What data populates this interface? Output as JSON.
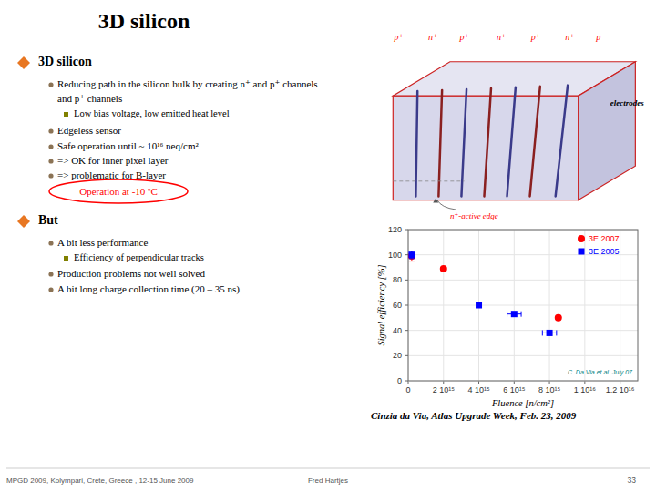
{
  "chart_data": {
    "type": "scatter",
    "title": "3D silicon",
    "xlabel": "Fluence [n/cm²]",
    "ylabel": "Signal efficiency [%]",
    "xlim": [
      0,
      1.3e+16
    ],
    "ylim": [
      0,
      120
    ],
    "xticks": [
      0,
      {
        "value": 2000000000000000.0,
        "label": "2 10¹⁵"
      },
      {
        "value": 4000000000000000.0,
        "label": "4 10¹⁵"
      },
      {
        "value": 6000000000000000.0,
        "label": "6 10¹⁵"
      },
      {
        "value": 8000000000000000.0,
        "label": "8 10¹⁵"
      },
      {
        "value": 1e+16,
        "label": "1 10¹⁶"
      },
      {
        "value": 1.2e+16,
        "label": "1.2 10¹⁶"
      }
    ],
    "yticks": [
      0,
      20,
      40,
      60,
      80,
      100,
      120
    ],
    "grid": true,
    "legend": "upper right",
    "series": [
      {
        "name": "3E 2007",
        "color": "red",
        "marker": "circle",
        "x": [
          200000000000000.0,
          2000000000000000.0,
          8500000000000000.0
        ],
        "values": [
          99,
          89,
          50
        ],
        "y_errors": [
          4,
          null,
          null
        ]
      },
      {
        "name": "3E 2005",
        "color": "blue",
        "marker": "square",
        "x": [
          200000000000000.0,
          4000000000000000.0,
          6000000000000000.0,
          8000000000000000.0
        ],
        "values": [
          100,
          60,
          53,
          38
        ],
        "y_errors": [
          3,
          null,
          null,
          null
        ],
        "x_errors": [
          null,
          null,
          400000000000000.0,
          400000000000000.0
        ]
      }
    ],
    "annotations": [
      "3D silicon",
      "Reducing path in the silicon bulk by creating n⁺ and p⁺ channels",
      "and p⁺ channels",
      "Low bias voltage, low emitted heat level",
      "Edgeless sensor",
      "Safe operation until ~ 10¹⁶ neq/cm²",
      "=> OK for inner pixel layer",
      "=> problematic for B-layer",
      "Operation at -10 ºC",
      "But",
      "A bit less performance",
      "Efficiency of perpendicular tracks",
      "Production problems not well solved",
      "A bit long charge collection time (20 – 35 ns)",
      "electrodes",
      "n⁺-active edge",
      "p⁺",
      "n⁺",
      "p⁺",
      "n⁺",
      "p⁺",
      "n⁺",
      "p",
      "C. Da Via et al. July 07",
      "Cinzia da Via, Atlas Upgrade Week, Feb. 23, 2009",
      "MPGD 2009, Kolympari, Crete, Greece , 12-15 June 2009",
      "Fred Hartjes",
      "33"
    ]
  }
}
